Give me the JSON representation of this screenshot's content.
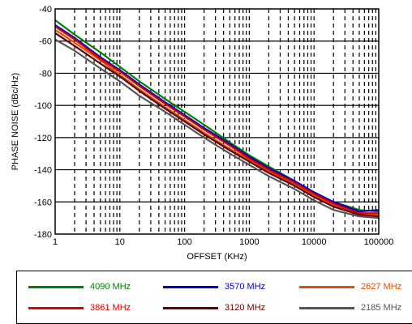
{
  "chart_data": {
    "type": "line",
    "title": "",
    "xlabel": "OFFSET (KHz)",
    "ylabel": "PHASE NOISE (dBc/Hz)",
    "x_scale": "log",
    "xlim": [
      1,
      100000
    ],
    "ylim": [
      -180,
      -40
    ],
    "grid": true,
    "x_tick_labels": [
      "1",
      "10",
      "100",
      "1000",
      "10000",
      "100000"
    ],
    "y_tick_labels": [
      "-40",
      "-60",
      "-80",
      "-100",
      "-120",
      "-140",
      "-160",
      "-180"
    ],
    "legend_position": "bottom",
    "x": [
      1,
      2,
      5,
      10,
      20,
      50,
      100,
      200,
      500,
      1000,
      2000,
      5000,
      10000,
      20000,
      50000,
      100000
    ],
    "series": [
      {
        "name": "4090 MHz",
        "color": "#008000",
        "values": [
          -47,
          -56,
          -67,
          -76,
          -85,
          -96,
          -104,
          -112,
          -123,
          -131,
          -138,
          -147,
          -154,
          -160,
          -165,
          -166
        ]
      },
      {
        "name": "3570 MHz",
        "color": "#0000cc",
        "values": [
          -50,
          -58,
          -70,
          -78,
          -87,
          -98,
          -106,
          -114,
          -124,
          -132,
          -139,
          -147,
          -154,
          -160,
          -166,
          -165
        ]
      },
      {
        "name": "2627 MHz",
        "color": "#e05000",
        "values": [
          -53,
          -61,
          -72,
          -81,
          -90,
          -101,
          -109,
          -117,
          -127,
          -134,
          -141,
          -149,
          -156,
          -162,
          -167,
          -168
        ]
      },
      {
        "name": "3861 MHz",
        "color": "#e00000",
        "values": [
          -51,
          -59,
          -71,
          -79,
          -88,
          -99,
          -107,
          -115,
          -125,
          -133,
          -140,
          -148,
          -155,
          -161,
          -167,
          -167
        ]
      },
      {
        "name": "3120 MHz",
        "color": "#660000",
        "values": [
          -55,
          -63,
          -74,
          -82,
          -91,
          -102,
          -110,
          -118,
          -128,
          -135,
          -142,
          -150,
          -157,
          -163,
          -168,
          -169
        ]
      },
      {
        "name": "2185 MHz",
        "color": "#555555",
        "values": [
          -59,
          -66,
          -77,
          -85,
          -94,
          -104,
          -112,
          -120,
          -130,
          -137,
          -144,
          -152,
          -159,
          -165,
          -169,
          -170
        ]
      }
    ]
  }
}
